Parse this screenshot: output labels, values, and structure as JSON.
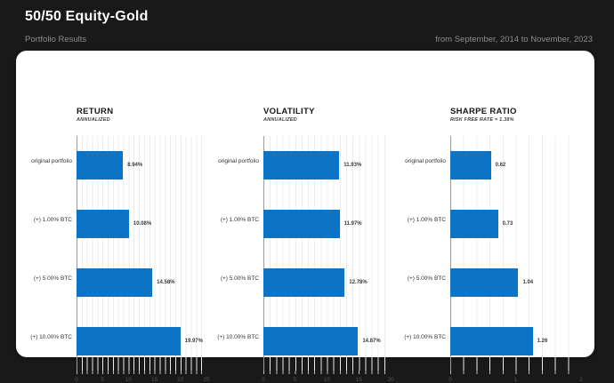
{
  "header": {
    "title": "50/50 Equity-Gold",
    "subtitle_left": "Portfolio Results",
    "subtitle_right": "from September, 2014 to November, 2023"
  },
  "colors": {
    "background": "#191919",
    "card": "#ffffff",
    "bar": "#0d73c4",
    "grid": "#ececec",
    "axis": "#9b9b9b"
  },
  "categories": [
    "original portfolio",
    "(+) 1.00% BTC",
    "(+) 5.00% BTC",
    "(+) 10.00% BTC"
  ],
  "chart_data": [
    {
      "type": "bar",
      "orientation": "horizontal",
      "title": "RETURN",
      "subtitle": "ANNUALIZED",
      "categories": [
        "original portfolio",
        "(+) 1.00% BTC",
        "(+) 5.00% BTC",
        "(+) 10.00% BTC"
      ],
      "values": [
        8.94,
        10.08,
        14.58,
        19.97
      ],
      "labels": [
        "8.94%",
        "10.08%",
        "14.58%",
        "19.97%"
      ],
      "xlim": [
        0,
        25
      ],
      "ticks": [
        0,
        5,
        10,
        15,
        20,
        25
      ],
      "grid_step": 1,
      "legend": "none",
      "grid": "on"
    },
    {
      "type": "bar",
      "orientation": "horizontal",
      "title": "VOLATILITY",
      "subtitle": "ANNUALIZED",
      "categories": [
        "original portfolio",
        "(+) 1.00% BTC",
        "(+) 5.00% BTC",
        "(+) 10.00% BTC"
      ],
      "values": [
        11.93,
        11.97,
        12.78,
        14.87
      ],
      "labels": [
        "11.93%",
        "11.97%",
        "12.78%",
        "14.87%"
      ],
      "xlim": [
        0,
        20
      ],
      "ticks": [
        0,
        5,
        10,
        15,
        20
      ],
      "grid_step": 1,
      "legend": "none",
      "grid": "on"
    },
    {
      "type": "bar",
      "orientation": "horizontal",
      "title": "SHARPE RATIO",
      "subtitle": "RISK FREE RATE = 1.38%",
      "categories": [
        "original portfolio",
        "(+) 1.00% BTC",
        "(+) 5.00% BTC",
        "(+) 10.00% BTC"
      ],
      "values": [
        0.62,
        0.73,
        1.04,
        1.26
      ],
      "labels": [
        "0.62",
        "0.73",
        "1.04",
        "1.26"
      ],
      "xlim": [
        0,
        2
      ],
      "ticks": [
        0,
        1,
        2
      ],
      "grid_step": 0.2,
      "legend": "none",
      "grid": "on"
    }
  ]
}
